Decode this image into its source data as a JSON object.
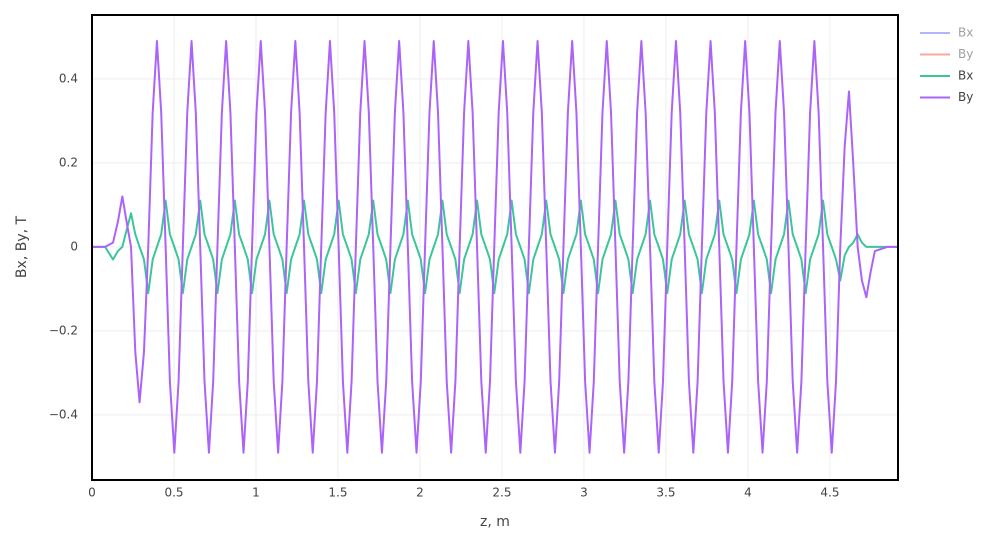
{
  "chart_data": {
    "type": "line",
    "xlabel": "z, m",
    "ylabel": "Bx, By, T",
    "xlim": [
      0,
      4.915
    ],
    "ylim": [
      -0.555,
      0.552
    ],
    "xticks": [
      0,
      0.5,
      1,
      1.5,
      2,
      2.5,
      3,
      3.5,
      4,
      4.5
    ],
    "yticks": [
      {
        "value": -0.4,
        "label": "−0.4"
      },
      {
        "value": -0.2,
        "label": "−0.2"
      },
      0,
      0.2,
      0.4
    ],
    "grid": true,
    "legend": "right",
    "x": [
      0,
      0.08,
      0.128,
      0.158,
      0.185,
      0.211,
      0.238,
      0.264,
      0.29,
      0.317,
      0.343,
      0.37,
      0.396,
      0.422,
      0.449,
      0.475,
      0.502,
      0.528,
      0.554,
      0.581,
      0.607,
      0.633,
      0.66,
      0.686,
      0.713,
      0.739,
      0.765,
      0.792,
      0.818,
      0.844,
      0.871,
      0.897,
      0.924,
      0.95,
      0.976,
      1.003,
      1.029,
      1.055,
      1.082,
      1.108,
      1.135,
      1.161,
      1.187,
      1.214,
      1.24,
      1.266,
      1.293,
      1.319,
      1.346,
      1.372,
      1.398,
      1.425,
      1.451,
      1.477,
      1.504,
      1.53,
      1.557,
      1.583,
      1.609,
      1.636,
      1.662,
      1.688,
      1.715,
      1.741,
      1.768,
      1.794,
      1.82,
      1.847,
      1.873,
      1.899,
      1.926,
      1.952,
      1.979,
      2.005,
      2.031,
      2.058,
      2.084,
      2.11,
      2.137,
      2.163,
      2.19,
      2.216,
      2.242,
      2.269,
      2.295,
      2.321,
      2.348,
      2.374,
      2.401,
      2.427,
      2.453,
      2.48,
      2.506,
      2.532,
      2.559,
      2.585,
      2.612,
      2.638,
      2.664,
      2.691,
      2.717,
      2.743,
      2.77,
      2.796,
      2.823,
      2.849,
      2.875,
      2.902,
      2.928,
      2.954,
      2.981,
      3.007,
      3.034,
      3.06,
      3.086,
      3.113,
      3.139,
      3.165,
      3.192,
      3.218,
      3.245,
      3.271,
      3.297,
      3.324,
      3.35,
      3.376,
      3.403,
      3.429,
      3.456,
      3.482,
      3.508,
      3.535,
      3.561,
      3.587,
      3.614,
      3.64,
      3.667,
      3.693,
      3.719,
      3.746,
      3.772,
      3.798,
      3.825,
      3.851,
      3.878,
      3.904,
      3.93,
      3.957,
      3.983,
      4.009,
      4.036,
      4.062,
      4.089,
      4.115,
      4.141,
      4.168,
      4.194,
      4.22,
      4.247,
      4.273,
      4.3,
      4.326,
      4.352,
      4.379,
      4.405,
      4.431,
      4.458,
      4.484,
      4.511,
      4.537,
      4.563,
      4.59,
      4.616,
      4.642,
      4.669,
      4.695,
      4.722,
      4.748,
      4.774,
      4.85,
      4.915
    ],
    "series": [
      {
        "name": "Bx",
        "color": "#636efa",
        "visible": "legendonly"
      },
      {
        "name": "By",
        "color": "#ef553b",
        "visible": "legendonly"
      },
      {
        "name": "Bx",
        "color": "#3dc59a",
        "values": [
          0,
          0,
          -0.03,
          -0.01,
          0,
          0.04,
          0.08,
          0.03,
          0,
          -0.03,
          -0.11,
          -0.03,
          0,
          0.03,
          0.11,
          0.03,
          0,
          -0.03,
          -0.11,
          -0.03,
          0,
          0.03,
          0.11,
          0.03,
          0,
          -0.03,
          -0.11,
          -0.03,
          0,
          0.03,
          0.11,
          0.03,
          0,
          -0.03,
          -0.11,
          -0.03,
          0,
          0.03,
          0.11,
          0.03,
          0,
          -0.03,
          -0.11,
          -0.03,
          0,
          0.03,
          0.11,
          0.03,
          0,
          -0.03,
          -0.11,
          -0.03,
          0,
          0.03,
          0.11,
          0.03,
          0,
          -0.03,
          -0.11,
          -0.03,
          0,
          0.03,
          0.11,
          0.03,
          0,
          -0.03,
          -0.11,
          -0.03,
          0,
          0.03,
          0.11,
          0.03,
          0,
          -0.03,
          -0.11,
          -0.03,
          0,
          0.03,
          0.11,
          0.03,
          0,
          -0.03,
          -0.11,
          -0.03,
          0,
          0.03,
          0.11,
          0.03,
          0,
          -0.03,
          -0.11,
          -0.03,
          0,
          0.03,
          0.11,
          0.03,
          0,
          -0.03,
          -0.11,
          -0.03,
          0,
          0.03,
          0.11,
          0.03,
          0,
          -0.03,
          -0.11,
          -0.03,
          0,
          0.03,
          0.11,
          0.03,
          0,
          -0.03,
          -0.11,
          -0.03,
          0,
          0.03,
          0.11,
          0.03,
          0,
          -0.03,
          -0.11,
          -0.03,
          0,
          0.03,
          0.11,
          0.03,
          0,
          -0.03,
          -0.11,
          -0.03,
          0,
          0.03,
          0.11,
          0.03,
          0,
          -0.03,
          -0.11,
          -0.03,
          0,
          0.03,
          0.11,
          0.03,
          0,
          -0.03,
          -0.11,
          -0.03,
          0,
          0.03,
          0.11,
          0.03,
          0,
          -0.03,
          -0.11,
          -0.03,
          0,
          0.03,
          0.11,
          0.03,
          0,
          -0.03,
          -0.11,
          -0.03,
          0,
          0.03,
          0.11,
          0.03,
          0,
          -0.03,
          -0.08,
          -0.02,
          0,
          0.01,
          0.03,
          0.01,
          0,
          0,
          0,
          0,
          0
        ]
      },
      {
        "name": "By",
        "color": "#ab63fa",
        "values": [
          0,
          0,
          0.01,
          0.06,
          0.12,
          0.06,
          0,
          -0.25,
          -0.37,
          -0.25,
          0,
          0.32,
          0.49,
          0.32,
          0,
          -0.32,
          -0.49,
          -0.32,
          0,
          0.32,
          0.49,
          0.32,
          0,
          -0.32,
          -0.49,
          -0.32,
          0,
          0.32,
          0.49,
          0.32,
          0,
          -0.32,
          -0.49,
          -0.32,
          0,
          0.32,
          0.49,
          0.32,
          0,
          -0.32,
          -0.49,
          -0.32,
          0,
          0.32,
          0.49,
          0.32,
          0,
          -0.32,
          -0.49,
          -0.32,
          0,
          0.32,
          0.49,
          0.32,
          0,
          -0.32,
          -0.49,
          -0.32,
          0,
          0.32,
          0.49,
          0.32,
          0,
          -0.32,
          -0.49,
          -0.32,
          0,
          0.32,
          0.49,
          0.32,
          0,
          -0.32,
          -0.49,
          -0.32,
          0,
          0.32,
          0.49,
          0.32,
          0,
          -0.32,
          -0.49,
          -0.32,
          0,
          0.32,
          0.49,
          0.32,
          0,
          -0.32,
          -0.49,
          -0.32,
          0,
          0.32,
          0.49,
          0.32,
          0,
          -0.32,
          -0.49,
          -0.32,
          0,
          0.32,
          0.49,
          0.32,
          0,
          -0.32,
          -0.49,
          -0.32,
          0,
          0.32,
          0.49,
          0.32,
          0,
          -0.32,
          -0.49,
          -0.32,
          0,
          0.32,
          0.49,
          0.32,
          0,
          -0.32,
          -0.49,
          -0.32,
          0,
          0.32,
          0.49,
          0.32,
          0,
          -0.32,
          -0.49,
          -0.32,
          0,
          0.32,
          0.49,
          0.32,
          0,
          -0.32,
          -0.49,
          -0.32,
          0,
          0.32,
          0.49,
          0.32,
          0,
          -0.32,
          -0.49,
          -0.32,
          0,
          0.32,
          0.49,
          0.32,
          0,
          -0.32,
          -0.49,
          -0.32,
          0,
          0.32,
          0.49,
          0.32,
          0,
          -0.32,
          -0.49,
          -0.32,
          0,
          0.32,
          0.49,
          0.32,
          0,
          -0.32,
          -0.49,
          -0.32,
          0,
          0.24,
          0.37,
          0.2,
          0,
          -0.08,
          -0.12,
          -0.06,
          -0.01,
          0,
          0
        ]
      }
    ]
  }
}
